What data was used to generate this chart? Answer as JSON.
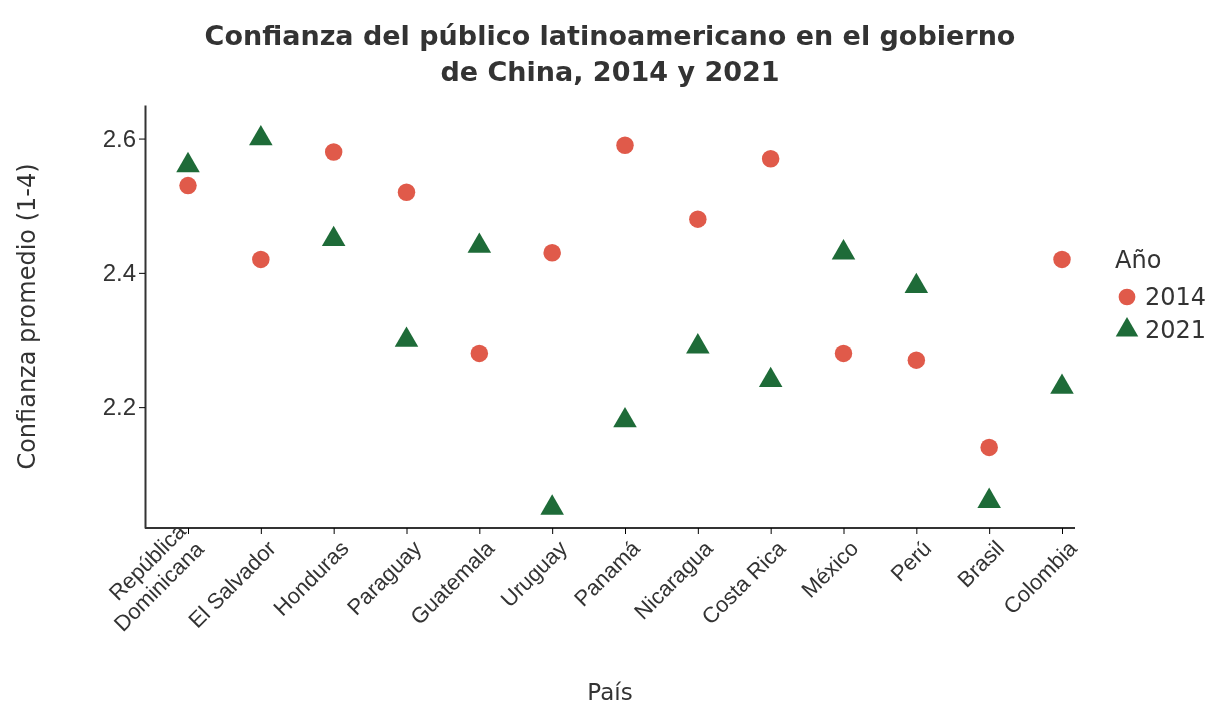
{
  "chart_data": {
    "type": "scatter",
    "title": "Confianza del público latinoamericano en el gobierno de China, 2014 y 2021",
    "xlabel": "País",
    "ylabel": "Confianza promedio (1-4)",
    "legend_title": "Año",
    "categories": [
      "República Dominicana",
      "El Salvador",
      "Honduras",
      "Paraguay",
      "Guatemala",
      "Uruguay",
      "Panamá",
      "Nicaragua",
      "Costa Rica",
      "México",
      "Perú",
      "Brasil",
      "Colombia"
    ],
    "series": [
      {
        "name": "2014",
        "color": "#e05a4a",
        "marker": "circle",
        "values": [
          2.53,
          2.42,
          2.58,
          2.52,
          2.28,
          2.43,
          2.59,
          2.48,
          2.57,
          2.28,
          2.27,
          2.14,
          2.42
        ]
      },
      {
        "name": "2021",
        "color": "#1e6b38",
        "marker": "triangle",
        "values": [
          2.56,
          2.6,
          2.45,
          2.3,
          2.44,
          2.05,
          2.18,
          2.29,
          2.24,
          2.43,
          2.38,
          2.06,
          2.23
        ]
      }
    ],
    "ylim": [
      2.02,
      2.65
    ],
    "yticks": [
      2.2,
      2.4,
      2.6
    ],
    "grid": false,
    "legend": "right"
  }
}
